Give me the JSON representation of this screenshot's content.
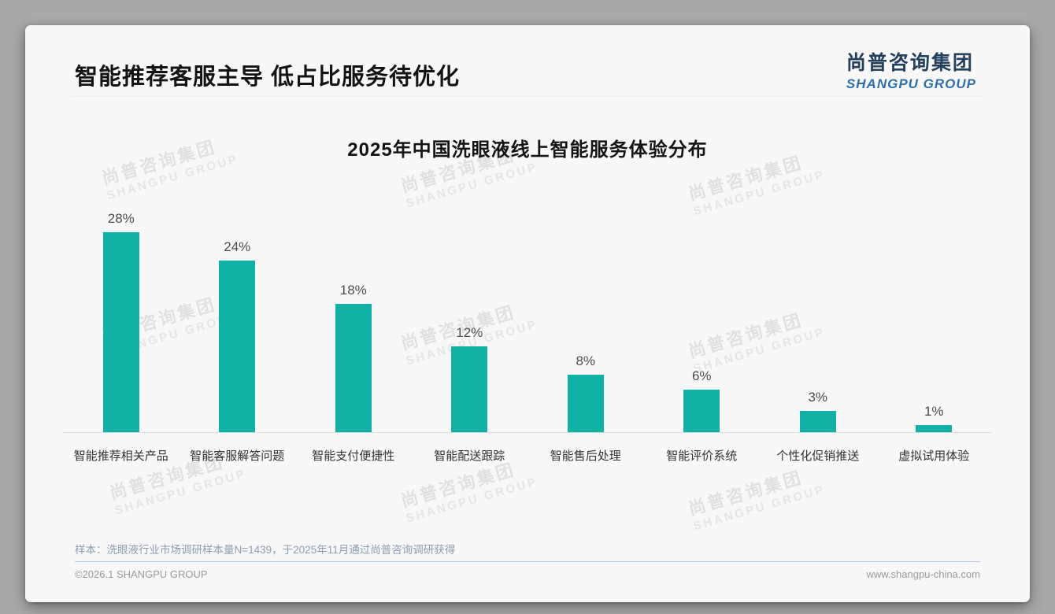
{
  "page": {
    "header": {
      "title": "智能推荐客服主导 低占比服务待优化"
    },
    "logo": {
      "cn": "尚普咨询集团",
      "en": "SHANGPU GROUP"
    },
    "watermark": {
      "cn": "尚普咨询集团",
      "en": "SHANGPU GROUP"
    },
    "footnote": "样本：洗眼液行业市场调研样本量N=1439，于2025年11月通过尚普咨询调研获得",
    "footer": {
      "left": "©2026.1 SHANGPU GROUP",
      "right": "www.shangpu-china.com"
    }
  },
  "chart_data": {
    "type": "bar",
    "title": "2025年中国洗眼液线上智能服务体验分布",
    "categories": [
      "智能推荐相关产品",
      "智能客服解答问题",
      "智能支付便捷性",
      "智能配送跟踪",
      "智能售后处理",
      "智能评价系统",
      "个性化促销推送",
      "虚拟试用体验"
    ],
    "values": [
      28,
      24,
      18,
      12,
      8,
      6,
      3,
      1
    ],
    "value_labels": [
      "28%",
      "24%",
      "18%",
      "12%",
      "8%",
      "6%",
      "3%",
      "1%"
    ],
    "unit": "%",
    "bar_color": "#11b1a6",
    "xlabel": "",
    "ylabel": "",
    "ylim": [
      0,
      30
    ],
    "grid": false,
    "legend_position": "none"
  }
}
